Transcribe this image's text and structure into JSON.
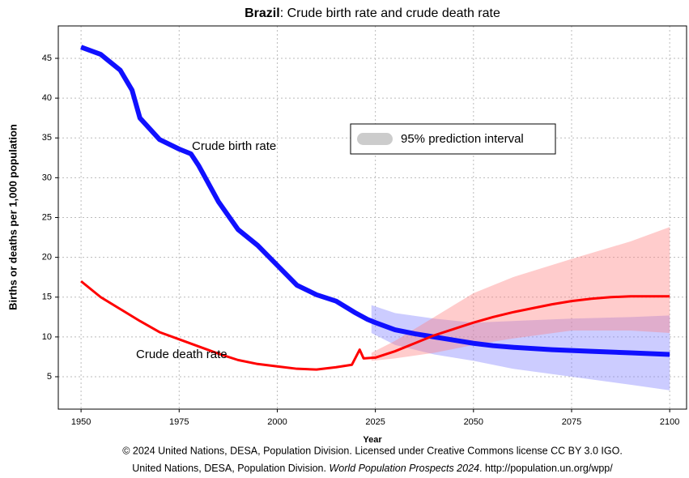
{
  "chart_data": {
    "type": "line",
    "title": {
      "bold": "Brazil",
      "rest": ": Crude birth rate and crude death rate"
    },
    "x_label": "Year",
    "y_label": "Births or deaths per 1,000 population",
    "xlim": [
      1944.2,
      2104.3
    ],
    "ylim": [
      0.93,
      49.07
    ],
    "xticks": [
      1950,
      1975,
      2000,
      2025,
      2050,
      2075,
      2100
    ],
    "yticks": [
      5,
      10,
      15,
      20,
      25,
      30,
      35,
      40,
      45
    ],
    "grid": true,
    "series": [
      {
        "name": "Crude birth rate",
        "color": "#1010ff",
        "x": [
          1950,
          1955,
          1960,
          1963,
          1965,
          1970,
          1975,
          1978,
          1980,
          1985,
          1990,
          1995,
          2000,
          2005,
          2010,
          2015,
          2020,
          2023,
          2025,
          2030,
          2035,
          2040,
          2045,
          2050,
          2055,
          2060,
          2070,
          2080,
          2090,
          2100
        ],
        "values": [
          46.4,
          45.5,
          43.5,
          41,
          37.5,
          34.8,
          33.6,
          33,
          31.5,
          27,
          23.5,
          21.5,
          19,
          16.5,
          15.3,
          14.5,
          13,
          12.2,
          11.8,
          10.9,
          10.4,
          10,
          9.6,
          9.2,
          8.9,
          8.7,
          8.4,
          8.2,
          8.0,
          7.8
        ],
        "interval": {
          "color": "#8080ff",
          "x": [
            2024,
            2030,
            2040,
            2050,
            2060,
            2075,
            2090,
            2100
          ],
          "lower": [
            10.5,
            9,
            7.8,
            7,
            6,
            5,
            4,
            3.3
          ],
          "upper": [
            14,
            13,
            12.3,
            11.8,
            12,
            12.3,
            12.5,
            12.7
          ]
        }
      },
      {
        "name": "Crude death rate",
        "color": "#ff0000",
        "x": [
          1950,
          1955,
          1960,
          1965,
          1970,
          1975,
          1980,
          1985,
          1990,
          1995,
          2000,
          2005,
          2010,
          2015,
          2019,
          2021,
          2022,
          2025,
          2030,
          2035,
          2040,
          2045,
          2050,
          2055,
          2060,
          2065,
          2070,
          2075,
          2080,
          2085,
          2090,
          2100
        ],
        "values": [
          17,
          15,
          13.5,
          12,
          10.6,
          9.7,
          8.8,
          7.9,
          7.1,
          6.6,
          6.3,
          6.0,
          5.9,
          6.2,
          6.5,
          8.4,
          7.3,
          7.4,
          8.2,
          9.2,
          10.2,
          11.0,
          11.8,
          12.5,
          13.1,
          13.6,
          14.1,
          14.5,
          14.8,
          15.0,
          15.1,
          15.1
        ],
        "interval": {
          "color": "#ff8080",
          "x": [
            2024,
            2030,
            2040,
            2050,
            2060,
            2075,
            2090,
            2100
          ],
          "lower": [
            7,
            7.3,
            8,
            9,
            9.8,
            10.8,
            10.8,
            10.5
          ],
          "upper": [
            8,
            9.5,
            12.5,
            15.5,
            17.5,
            19.8,
            22,
            23.8
          ]
        }
      }
    ],
    "legend": {
      "label": "95% prediction interval"
    },
    "footer": {
      "line1": "© 2024 United Nations, DESA, Population Division. Licensed under Creative Commons license CC BY 3.0 IGO.",
      "line2_start": "United Nations, DESA, Population Division. ",
      "line2_italic": "World Population Prospects 2024",
      "line2_end": ". http://population.un.org/wpp/"
    }
  }
}
